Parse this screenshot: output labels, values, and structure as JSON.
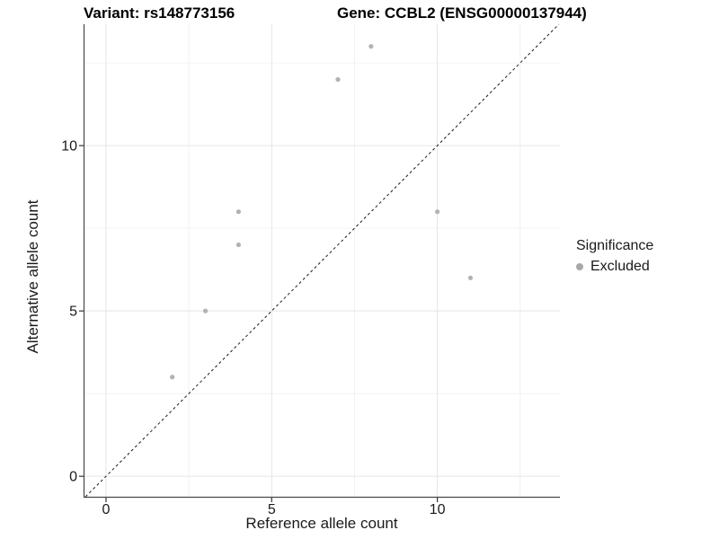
{
  "titles": {
    "variant": "Variant: rs148773156",
    "gene": "Gene: CCBL2 (ENSG00000137944)"
  },
  "chart_data": {
    "type": "scatter",
    "title_left": "Variant: rs148773156",
    "title_right": "Gene: CCBL2 (ENSG00000137944)",
    "xlabel": "Reference allele count",
    "ylabel": "Alternative allele count",
    "xlim": [
      -0.65,
      13.7
    ],
    "ylim": [
      -0.62,
      13.67
    ],
    "x_ticks": [
      0,
      5,
      10
    ],
    "y_ticks": [
      0,
      5,
      10
    ],
    "x_minor_ticks": [
      2.5,
      7.5,
      12.5
    ],
    "y_minor_ticks": [
      2.5,
      7.5,
      12.5
    ],
    "grid": true,
    "identity_line": {
      "style": "dashed",
      "slope": 1,
      "intercept": 0,
      "from": -0.62,
      "to": 13.67,
      "color": "#1a1a1a"
    },
    "series": [
      {
        "name": "Excluded",
        "color": "#b2b2b2",
        "points": [
          [
            2,
            3
          ],
          [
            3,
            5
          ],
          [
            4,
            7
          ],
          [
            4,
            8
          ],
          [
            7,
            12
          ],
          [
            8,
            13
          ],
          [
            10,
            8
          ],
          [
            11,
            6
          ]
        ]
      }
    ],
    "legend": {
      "title": "Significance",
      "position": "right",
      "items": [
        {
          "label": "Excluded",
          "color": "#a8a8a8"
        }
      ]
    },
    "style": {
      "grid_major_color": "#e5e5e5",
      "grid_minor_color": "#f0f0f0",
      "axis_line_color": "#474747",
      "tick_color": "#333333",
      "point_radius": 2.6,
      "background": "#ffffff"
    }
  }
}
